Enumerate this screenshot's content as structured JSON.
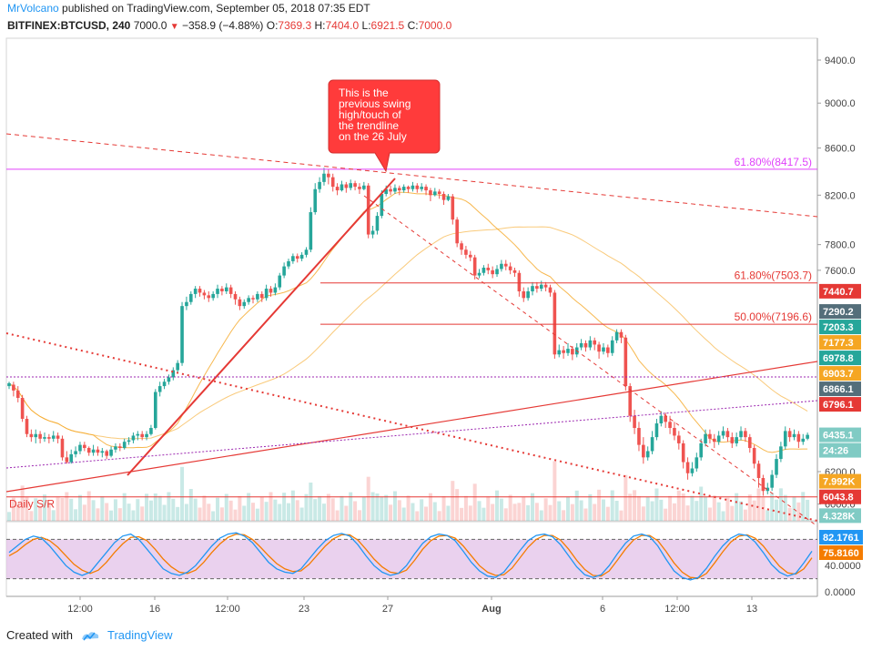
{
  "header": {
    "author": "MrVolcano",
    "published_text": "published on TradingView.com, September 05, 2018 07:35 EDT",
    "symbol": "BITFINEX:BTCUSD, 240",
    "last": "7000.0",
    "change": "−358.9 (−4.88%)",
    "o_label": "O:",
    "o_val": "7369.3",
    "h_label": "H:",
    "h_val": "7404.0",
    "l_label": "L:",
    "l_val": "6921.5",
    "c_label": "C:",
    "c_val": "7000.0"
  },
  "footer": {
    "created_with": "Created with",
    "brand": "TradingView"
  },
  "colors": {
    "up": "#26a69a",
    "down": "#ef5350",
    "fib": "#e040fb",
    "sr": "#e53935",
    "ma": "#f5a623",
    "stoch_k": "#2196f3",
    "stoch_d": "#f57c00",
    "stoch_band": "#e1bee7"
  },
  "chart_data": {
    "type": "candlestick",
    "symbol": "BITFINEX:BTCUSD",
    "timeframe": "240",
    "price_axis": {
      "scale": "log",
      "ticks": [
        9400.0,
        9000.0,
        8600.0,
        8200.0,
        7800.0,
        7600.0,
        6200.0,
        6000.0
      ]
    },
    "time_axis": {
      "ticks": [
        "12:00",
        "16",
        "12:00",
        "23",
        "27",
        "Aug",
        "6",
        "12:00",
        "13"
      ]
    },
    "fib_levels": [
      {
        "label": "61.80%(8417.5)",
        "price": 8417.5,
        "color": "#e040fb"
      },
      {
        "label": "61.80%(7503.7)",
        "price": 7503.7,
        "color": "#e53935"
      },
      {
        "label": "50.00%(7196.6)",
        "price": 7196.6,
        "color": "#e53935"
      }
    ],
    "price_tags": [
      {
        "text": "7440.7",
        "price": 7440.7,
        "color": "#e53935"
      },
      {
        "text": "7290.2",
        "price": 7290.2,
        "color": "#546e7a"
      },
      {
        "text": "7203.3",
        "price": 7203.3,
        "color": "#26a69a"
      },
      {
        "text": "7177.3",
        "price": 7177.3,
        "color": "#f5a623"
      },
      {
        "text": "6978.8",
        "price": 6978.8,
        "color": "#26a69a"
      },
      {
        "text": "6903.7",
        "price": 6903.7,
        "color": "#f5a623"
      },
      {
        "text": "6866.1",
        "price": 6866.1,
        "color": "#546e7a"
      },
      {
        "text": "6796.1",
        "price": 6796.1,
        "color": "#e53935"
      },
      {
        "text": "6435.1",
        "price": 6435.1,
        "color": "#80cbc4"
      },
      {
        "text": "24:26",
        "price": 6380.0,
        "color": "#80cbc4"
      },
      {
        "text": "7.992K",
        "price": 6140.0,
        "color": "#f5a623"
      },
      {
        "text": "6043.8",
        "price": 6043.8,
        "color": "#e53935"
      },
      {
        "text": "4.328K",
        "price": 5930.0,
        "color": "#80cbc4"
      }
    ],
    "annotations": [
      {
        "text": "This is the previous swing high/touch of the trendline on the 26 July",
        "type": "callout"
      },
      {
        "text": "Daily S/R",
        "type": "label"
      }
    ],
    "stochastic": {
      "ticks": [
        40.0,
        0.0
      ],
      "k_value": "82.1761",
      "d_value": "75.8160",
      "upper": 80,
      "lower": 20
    },
    "candles": [
      [
        6760,
        6780,
        6740,
        6790
      ],
      [
        6770,
        6730,
        6690,
        6790
      ],
      [
        6730,
        6680,
        6650,
        6760
      ],
      [
        6680,
        6540,
        6520,
        6700
      ],
      [
        6540,
        6440,
        6420,
        6560
      ],
      [
        6440,
        6420,
        6390,
        6470
      ],
      [
        6420,
        6440,
        6380,
        6470
      ],
      [
        6440,
        6410,
        6380,
        6460
      ],
      [
        6410,
        6420,
        6390,
        6450
      ],
      [
        6420,
        6410,
        6380,
        6440
      ],
      [
        6410,
        6430,
        6390,
        6460
      ],
      [
        6430,
        6410,
        6380,
        6450
      ],
      [
        6410,
        6290,
        6270,
        6430
      ],
      [
        6290,
        6260,
        6250,
        6330
      ],
      [
        6260,
        6310,
        6250,
        6340
      ],
      [
        6310,
        6330,
        6290,
        6360
      ],
      [
        6330,
        6370,
        6310,
        6390
      ],
      [
        6370,
        6350,
        6330,
        6390
      ],
      [
        6350,
        6320,
        6300,
        6360
      ],
      [
        6320,
        6340,
        6300,
        6370
      ],
      [
        6340,
        6320,
        6300,
        6360
      ],
      [
        6320,
        6330,
        6290,
        6350
      ],
      [
        6330,
        6300,
        6280,
        6340
      ],
      [
        6300,
        6340,
        6290,
        6360
      ],
      [
        6340,
        6360,
        6320,
        6380
      ],
      [
        6360,
        6350,
        6330,
        6380
      ],
      [
        6350,
        6390,
        6340,
        6410
      ],
      [
        6390,
        6400,
        6370,
        6420
      ],
      [
        6400,
        6430,
        6380,
        6450
      ],
      [
        6430,
        6440,
        6400,
        6460
      ],
      [
        6440,
        6420,
        6400,
        6460
      ],
      [
        6420,
        6440,
        6400,
        6460
      ],
      [
        6440,
        6480,
        6430,
        6500
      ],
      [
        6480,
        6720,
        6470,
        6740
      ],
      [
        6720,
        6760,
        6690,
        6790
      ],
      [
        6760,
        6790,
        6740,
        6810
      ],
      [
        6790,
        6820,
        6770,
        6840
      ],
      [
        6820,
        6870,
        6800,
        6890
      ],
      [
        6870,
        6920,
        6850,
        6940
      ],
      [
        6920,
        7330,
        6900,
        7360
      ],
      [
        7330,
        7360,
        7300,
        7400
      ],
      [
        7360,
        7420,
        7340,
        7440
      ],
      [
        7420,
        7460,
        7390,
        7480
      ],
      [
        7460,
        7430,
        7400,
        7480
      ],
      [
        7430,
        7410,
        7380,
        7450
      ],
      [
        7410,
        7390,
        7360,
        7440
      ],
      [
        7390,
        7420,
        7370,
        7440
      ],
      [
        7420,
        7460,
        7390,
        7490
      ],
      [
        7460,
        7440,
        7410,
        7480
      ],
      [
        7440,
        7470,
        7420,
        7500
      ],
      [
        7470,
        7420,
        7390,
        7490
      ],
      [
        7420,
        7380,
        7340,
        7440
      ],
      [
        7380,
        7330,
        7300,
        7400
      ],
      [
        7330,
        7360,
        7310,
        7380
      ],
      [
        7360,
        7390,
        7340,
        7410
      ],
      [
        7390,
        7380,
        7350,
        7410
      ],
      [
        7380,
        7420,
        7360,
        7440
      ],
      [
        7420,
        7390,
        7360,
        7440
      ],
      [
        7390,
        7460,
        7370,
        7490
      ],
      [
        7460,
        7430,
        7400,
        7480
      ],
      [
        7430,
        7470,
        7410,
        7500
      ],
      [
        7470,
        7560,
        7450,
        7580
      ],
      [
        7560,
        7630,
        7540,
        7660
      ],
      [
        7630,
        7670,
        7610,
        7690
      ],
      [
        7670,
        7710,
        7650,
        7730
      ],
      [
        7710,
        7690,
        7660,
        7730
      ],
      [
        7690,
        7720,
        7670,
        7740
      ],
      [
        7720,
        7760,
        7700,
        7780
      ],
      [
        7760,
        8060,
        7740,
        8100
      ],
      [
        8060,
        8250,
        8040,
        8300
      ],
      [
        8250,
        8310,
        8220,
        8350
      ],
      [
        8310,
        8380,
        8280,
        8430
      ],
      [
        8380,
        8350,
        8290,
        8420
      ],
      [
        8350,
        8270,
        8230,
        8380
      ],
      [
        8270,
        8240,
        8200,
        8300
      ],
      [
        8240,
        8290,
        8230,
        8320
      ],
      [
        8290,
        8260,
        8220,
        8310
      ],
      [
        8260,
        8300,
        8240,
        8330
      ],
      [
        8300,
        8270,
        8240,
        8320
      ],
      [
        8270,
        8250,
        8210,
        8300
      ],
      [
        8250,
        8280,
        8240,
        8310
      ],
      [
        8280,
        7880,
        7850,
        8300
      ],
      [
        7880,
        7910,
        7850,
        7950
      ],
      [
        7910,
        8030,
        7880,
        8060
      ],
      [
        8030,
        8210,
        8010,
        8240
      ],
      [
        8210,
        8250,
        8190,
        8280
      ],
      [
        8250,
        8230,
        8200,
        8280
      ],
      [
        8230,
        8260,
        8210,
        8290
      ],
      [
        8260,
        8240,
        8200,
        8280
      ],
      [
        8240,
        8270,
        8220,
        8290
      ],
      [
        8270,
        8250,
        8220,
        8280
      ],
      [
        8250,
        8280,
        8230,
        8310
      ],
      [
        8280,
        8250,
        8220,
        8300
      ],
      [
        8250,
        8270,
        8230,
        8300
      ],
      [
        8270,
        8240,
        8200,
        8290
      ],
      [
        8240,
        8200,
        8150,
        8260
      ],
      [
        8200,
        8230,
        8190,
        8260
      ],
      [
        8230,
        8210,
        8170,
        8250
      ],
      [
        8210,
        8160,
        8120,
        8230
      ],
      [
        8160,
        8190,
        8150,
        8210
      ],
      [
        8190,
        8000,
        7960,
        8210
      ],
      [
        8000,
        7810,
        7780,
        8020
      ],
      [
        7810,
        7760,
        7720,
        7830
      ],
      [
        7760,
        7720,
        7690,
        7790
      ],
      [
        7720,
        7700,
        7670,
        7750
      ],
      [
        7700,
        7560,
        7530,
        7720
      ],
      [
        7560,
        7580,
        7540,
        7610
      ],
      [
        7580,
        7620,
        7560,
        7640
      ],
      [
        7620,
        7600,
        7570,
        7650
      ],
      [
        7600,
        7570,
        7540,
        7630
      ],
      [
        7570,
        7610,
        7550,
        7640
      ],
      [
        7610,
        7650,
        7590,
        7680
      ],
      [
        7650,
        7630,
        7600,
        7680
      ],
      [
        7630,
        7600,
        7570,
        7660
      ],
      [
        7600,
        7580,
        7550,
        7620
      ],
      [
        7580,
        7440,
        7400,
        7600
      ],
      [
        7440,
        7390,
        7360,
        7470
      ],
      [
        7390,
        7440,
        7370,
        7470
      ],
      [
        7440,
        7480,
        7410,
        7510
      ],
      [
        7480,
        7460,
        7430,
        7510
      ],
      [
        7460,
        7490,
        7440,
        7520
      ],
      [
        7490,
        7470,
        7440,
        7510
      ],
      [
        7470,
        7430,
        7400,
        7490
      ],
      [
        7430,
        6980,
        6950,
        7450
      ],
      [
        6980,
        7010,
        6960,
        7050
      ],
      [
        7010,
        6990,
        6950,
        7040
      ],
      [
        6990,
        7020,
        6970,
        7060
      ],
      [
        7020,
        6980,
        6940,
        7040
      ],
      [
        6980,
        7030,
        6960,
        7060
      ],
      [
        7030,
        7060,
        7010,
        7090
      ],
      [
        7060,
        7030,
        7000,
        7080
      ],
      [
        7030,
        7080,
        7010,
        7110
      ],
      [
        7080,
        7050,
        7010,
        7100
      ],
      [
        7050,
        7000,
        6950,
        7070
      ],
      [
        7000,
        7030,
        6980,
        7060
      ],
      [
        7030,
        6990,
        6960,
        7050
      ],
      [
        6990,
        7080,
        6970,
        7110
      ],
      [
        7080,
        7140,
        7060,
        7160
      ],
      [
        7140,
        7100,
        7060,
        7160
      ],
      [
        7100,
        6760,
        6730,
        7120
      ],
      [
        6760,
        6560,
        6520,
        6780
      ],
      [
        6560,
        6480,
        6440,
        6600
      ],
      [
        6480,
        6370,
        6330,
        6520
      ],
      [
        6370,
        6290,
        6250,
        6420
      ],
      [
        6290,
        6330,
        6270,
        6360
      ],
      [
        6330,
        6420,
        6310,
        6460
      ],
      [
        6420,
        6510,
        6400,
        6540
      ],
      [
        6510,
        6560,
        6490,
        6590
      ],
      [
        6560,
        6520,
        6480,
        6580
      ],
      [
        6520,
        6480,
        6440,
        6560
      ],
      [
        6480,
        6430,
        6400,
        6520
      ],
      [
        6430,
        6380,
        6340,
        6460
      ],
      [
        6380,
        6260,
        6220,
        6400
      ],
      [
        6260,
        6190,
        6150,
        6290
      ],
      [
        6190,
        6220,
        6170,
        6260
      ],
      [
        6220,
        6290,
        6200,
        6320
      ],
      [
        6290,
        6380,
        6270,
        6410
      ],
      [
        6380,
        6440,
        6360,
        6470
      ],
      [
        6440,
        6410,
        6380,
        6470
      ],
      [
        6410,
        6390,
        6350,
        6440
      ],
      [
        6390,
        6430,
        6370,
        6460
      ],
      [
        6430,
        6460,
        6410,
        6490
      ],
      [
        6460,
        6420,
        6390,
        6480
      ],
      [
        6420,
        6380,
        6350,
        6450
      ],
      [
        6380,
        6420,
        6360,
        6450
      ],
      [
        6420,
        6460,
        6400,
        6490
      ],
      [
        6460,
        6420,
        6390,
        6480
      ],
      [
        6420,
        6350,
        6320,
        6440
      ],
      [
        6350,
        6250,
        6220,
        6370
      ],
      [
        6250,
        6160,
        6100,
        6270
      ],
      [
        6160,
        6080,
        6050,
        6180
      ],
      [
        6080,
        6100,
        6060,
        6130
      ],
      [
        6100,
        6180,
        6080,
        6210
      ],
      [
        6180,
        6280,
        6160,
        6310
      ],
      [
        6280,
        6360,
        6260,
        6390
      ],
      [
        6360,
        6460,
        6340,
        6490
      ],
      [
        6460,
        6420,
        6390,
        6480
      ],
      [
        6420,
        6440,
        6400,
        6470
      ],
      [
        6440,
        6390,
        6350,
        6460
      ],
      [
        6390,
        6410,
        6370,
        6440
      ],
      [
        6410,
        6435,
        6400,
        6450
      ]
    ],
    "volume_scale": "relative",
    "stoch_k": [
      60,
      70,
      80,
      85,
      82,
      70,
      55,
      40,
      30,
      25,
      30,
      45,
      60,
      75,
      85,
      88,
      80,
      65,
      50,
      35,
      28,
      25,
      30,
      40,
      55,
      70,
      82,
      88,
      90,
      85,
      75,
      60,
      45,
      35,
      30,
      28,
      35,
      50,
      65,
      78,
      86,
      89,
      85,
      72,
      55,
      40,
      30,
      25,
      28,
      40,
      58,
      74,
      84,
      88,
      86,
      78,
      62,
      45,
      32,
      24,
      22,
      30,
      46,
      63,
      78,
      86,
      88,
      84,
      72,
      55,
      38,
      26,
      22,
      26,
      40,
      58,
      74,
      85,
      88,
      84,
      70,
      50,
      32,
      22,
      18,
      22,
      36,
      54,
      70,
      82,
      88,
      86,
      76,
      60,
      42,
      30,
      24,
      28,
      44,
      62
    ],
    "stoch_d": [
      55,
      62,
      72,
      80,
      83,
      78,
      68,
      55,
      42,
      33,
      28,
      33,
      45,
      60,
      73,
      83,
      84,
      78,
      65,
      50,
      38,
      30,
      28,
      33,
      45,
      60,
      73,
      83,
      88,
      87,
      80,
      68,
      55,
      43,
      35,
      31,
      32,
      42,
      56,
      70,
      81,
      87,
      87,
      79,
      65,
      50,
      38,
      30,
      28,
      33,
      48,
      65,
      78,
      85,
      86,
      82,
      70,
      55,
      40,
      30,
      25,
      26,
      36,
      52,
      68,
      80,
      86,
      86,
      79,
      65,
      48,
      34,
      25,
      24,
      32,
      48,
      65,
      79,
      86,
      86,
      78,
      62,
      44,
      30,
      22,
      21,
      28,
      44,
      61,
      76,
      85,
      87,
      82,
      70,
      54,
      39,
      29,
      27,
      35,
      52
    ]
  }
}
